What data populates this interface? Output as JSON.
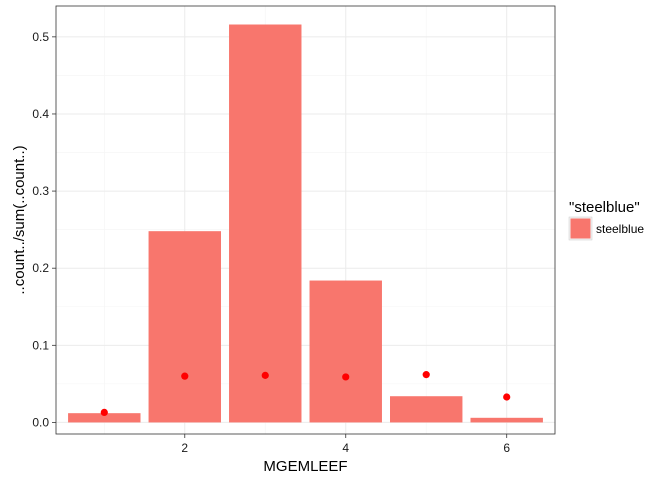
{
  "chart_data": {
    "type": "bar",
    "xlabel": "MGEMLEEF",
    "ylabel": "..count../sum(..count..)",
    "xlim": [
      0.4,
      6.6
    ],
    "ylim": [
      -0.015,
      0.54
    ],
    "x_ticks": [
      2,
      4,
      6
    ],
    "y_ticks": [
      0.0,
      0.1,
      0.2,
      0.3,
      0.4,
      0.5
    ],
    "y_tick_labels": [
      "0.0",
      "0.1",
      "0.2",
      "0.3",
      "0.4",
      "0.5"
    ],
    "grid": true,
    "legend_position": "right",
    "bars": {
      "name": "steelblue",
      "color": "#F8766D",
      "x": [
        1,
        2,
        3,
        4,
        5,
        6
      ],
      "values": [
        0.012,
        0.248,
        0.516,
        0.184,
        0.034,
        0.006
      ]
    },
    "points": {
      "color": "#FF0000",
      "x": [
        1,
        2,
        3,
        4,
        5,
        6
      ],
      "values": [
        0.013,
        0.06,
        0.061,
        0.059,
        0.062,
        0.033
      ]
    },
    "legend": {
      "title": "\"steelblue\"",
      "items": [
        {
          "label": "steelblue",
          "color": "#F8766D"
        }
      ]
    }
  }
}
